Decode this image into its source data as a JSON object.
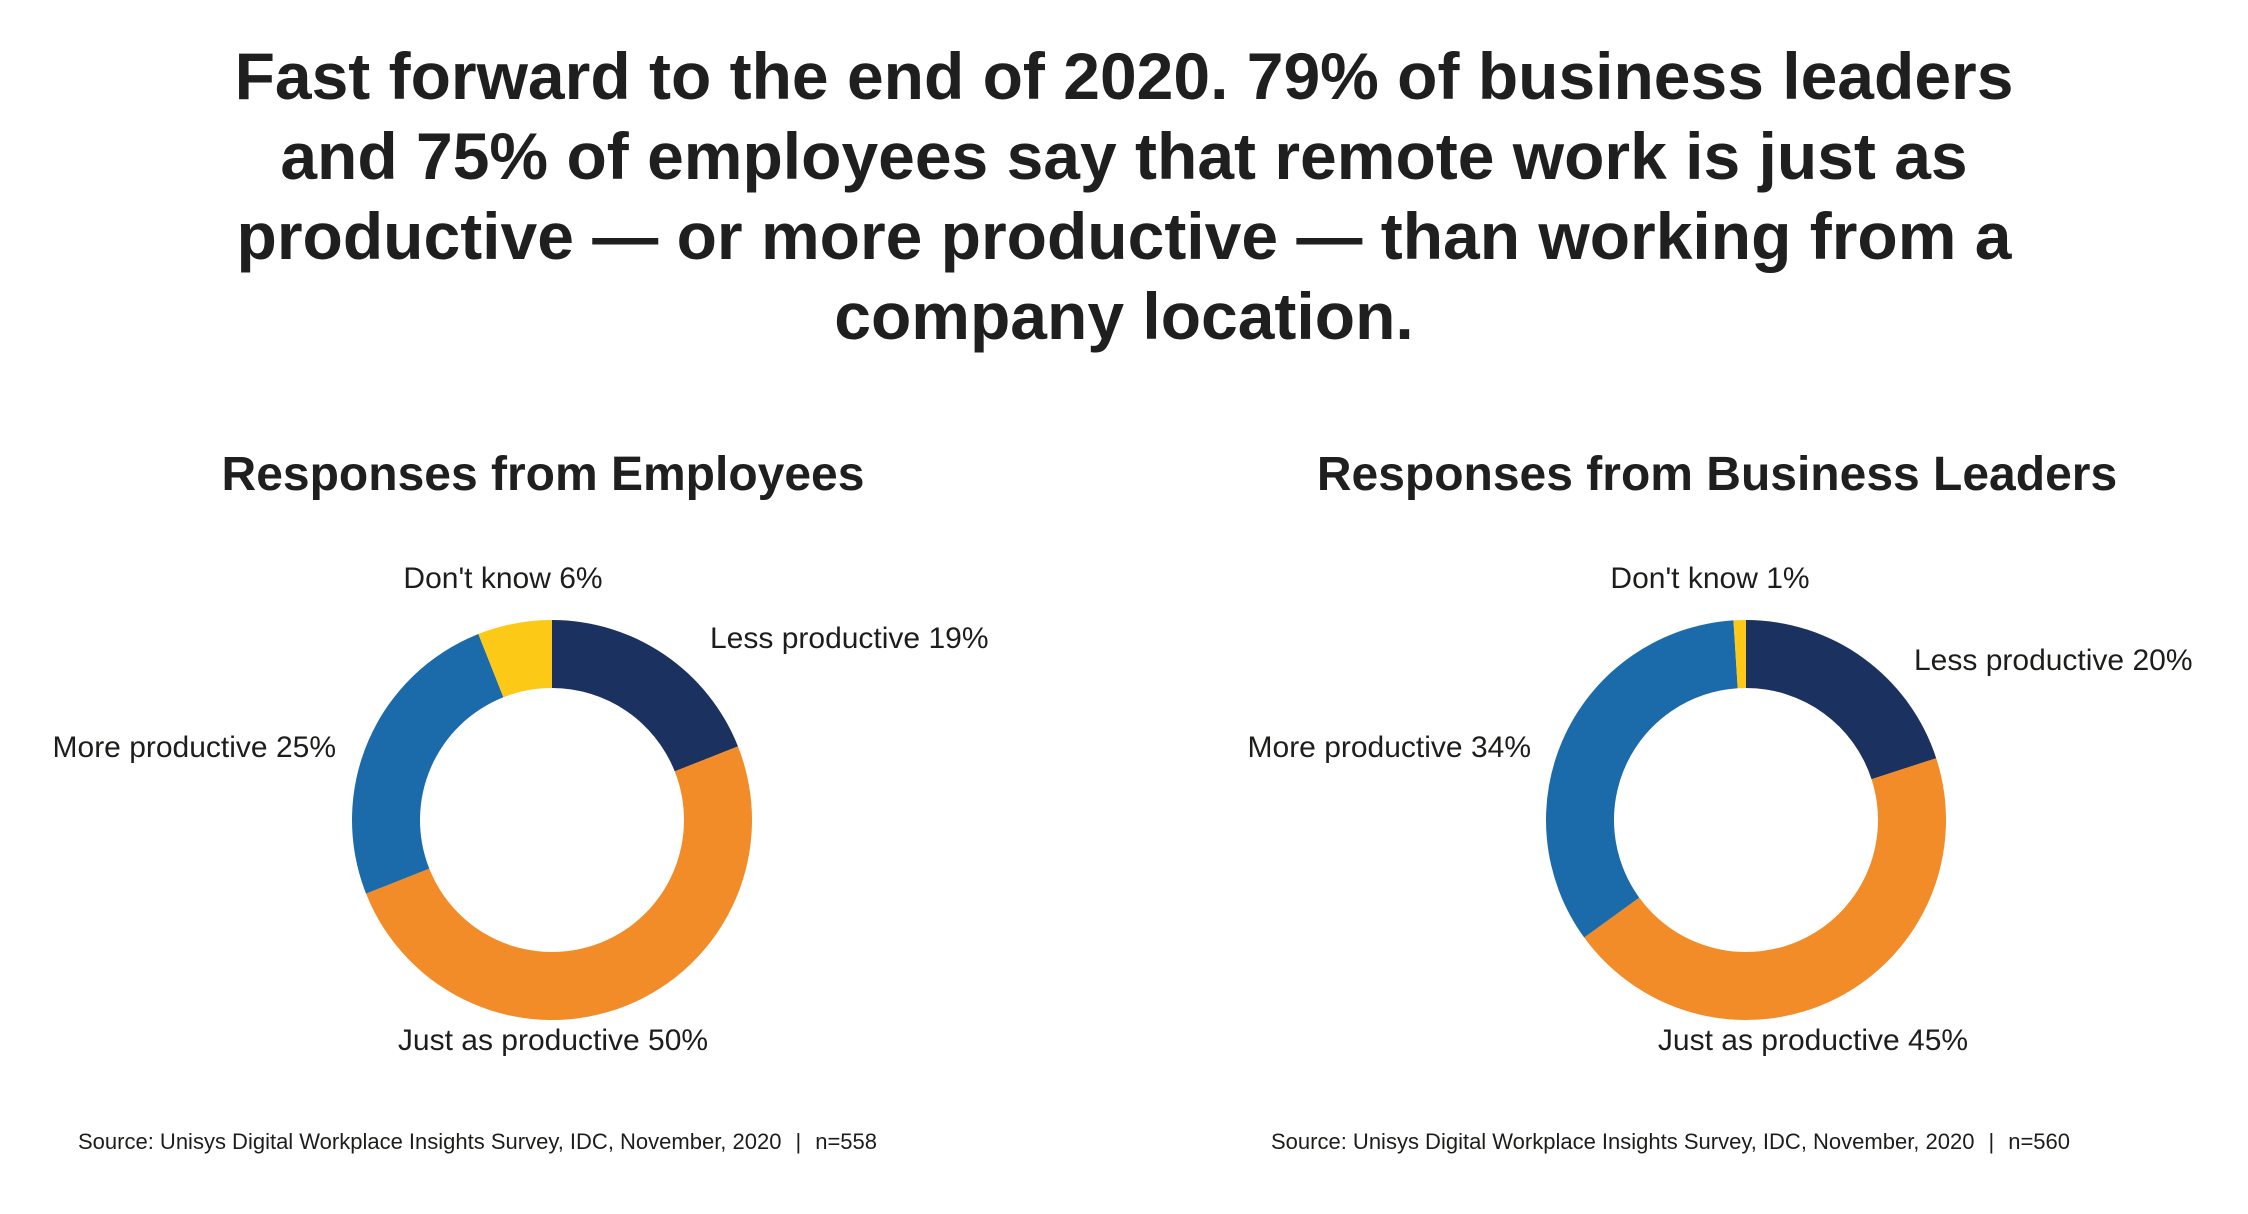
{
  "headline": "Fast forward to the end of 2020. 79% of business leaders and 75% of employees say that remote work is just as productive — or more productive — than working from a company location.",
  "colors": {
    "less_productive": "#1b3260",
    "just_as_productive": "#f28c28",
    "more_productive": "#1b6aaa",
    "dont_know": "#fcc917"
  },
  "chart_data": [
    {
      "type": "pie",
      "donut": true,
      "title": "Responses from Employees",
      "slices": [
        {
          "label": "Less productive",
          "value": 19,
          "text": "Less productive 19%",
          "color_key": "less_productive"
        },
        {
          "label": "Just as productive",
          "value": 50,
          "text": "Just as productive 50%",
          "color_key": "just_as_productive"
        },
        {
          "label": "More productive",
          "value": 25,
          "text": "More productive 25%",
          "color_key": "more_productive"
        },
        {
          "label": "Don't know",
          "value": 6,
          "text": "Don't know 6%",
          "color_key": "dont_know"
        }
      ],
      "source": "Source: Unisys Digital Workplace Insights Survey, IDC, November, 2020",
      "separator": "|",
      "n": "n=558"
    },
    {
      "type": "pie",
      "donut": true,
      "title": "Responses from Business Leaders",
      "slices": [
        {
          "label": "Less productive",
          "value": 20,
          "text": "Less productive 20%",
          "color_key": "less_productive"
        },
        {
          "label": "Just as productive",
          "value": 45,
          "text": "Just as productive 45%",
          "color_key": "just_as_productive"
        },
        {
          "label": "More productive",
          "value": 34,
          "text": "More productive 34%",
          "color_key": "more_productive"
        },
        {
          "label": "Don't know",
          "value": 1,
          "text": "Don't know 1%",
          "color_key": "dont_know"
        }
      ],
      "source": "Source: Unisys Digital Workplace Insights Survey, IDC, November, 2020",
      "separator": "|",
      "n": "n=560"
    }
  ]
}
